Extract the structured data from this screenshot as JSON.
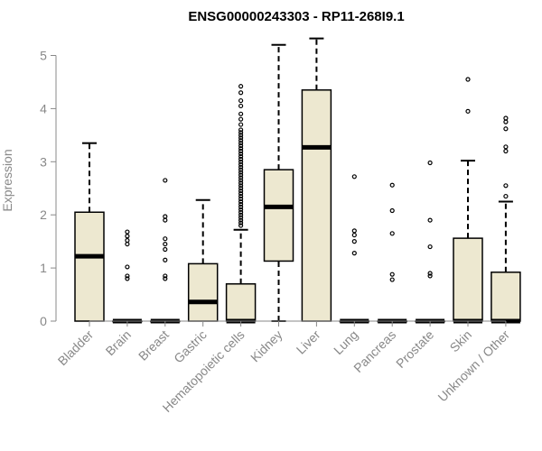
{
  "chart_data": {
    "type": "boxplot",
    "title": "ENSG00000243303 - RP11-268I9.1",
    "xlabel": "",
    "ylabel": "Expression",
    "ylim": [
      0,
      5.35
    ],
    "yticks": [
      0,
      1,
      2,
      3,
      4,
      5
    ],
    "grid": false,
    "legend": "none",
    "colors": {
      "box_fill": "#ede8d0",
      "stroke": "#000000",
      "axis": "#888888"
    },
    "categories": [
      "Bladder",
      "Brain",
      "Breast",
      "Gastric",
      "Hematopoietic cells",
      "Kidney",
      "Liver",
      "Lung",
      "Pancreas",
      "Prostate",
      "Skin",
      "Unknown / Other"
    ],
    "boxes": [
      {
        "category": "Bladder",
        "min": 0,
        "q1": 0,
        "median": 1.22,
        "q3": 2.05,
        "max": 3.35,
        "outliers": []
      },
      {
        "category": "Brain",
        "min": 0,
        "q1": 0,
        "median": 0,
        "q3": 0,
        "max": 0,
        "outliers": [
          0.8,
          0.85,
          1.02,
          1.45,
          1.52,
          1.6,
          1.68
        ]
      },
      {
        "category": "Breast",
        "min": 0,
        "q1": 0,
        "median": 0,
        "q3": 0,
        "max": 0,
        "outliers": [
          0.8,
          0.85,
          1.15,
          1.35,
          1.45,
          1.55,
          1.9,
          1.97,
          2.65
        ]
      },
      {
        "category": "Gastric",
        "min": 0,
        "q1": 0,
        "median": 0.36,
        "q3": 1.08,
        "max": 2.28,
        "outliers": []
      },
      {
        "category": "Hematopoietic cells",
        "min": 0,
        "q1": 0,
        "median": 0,
        "q3": 0.7,
        "max": 1.72,
        "outliers": [
          1.8,
          1.85,
          1.9,
          1.95,
          2.0,
          2.05,
          2.1,
          2.15,
          2.2,
          2.25,
          2.3,
          2.35,
          2.4,
          2.45,
          2.5,
          2.55,
          2.6,
          2.65,
          2.7,
          2.75,
          2.8,
          2.85,
          2.9,
          2.95,
          3.0,
          3.05,
          3.1,
          3.15,
          3.2,
          3.25,
          3.3,
          3.35,
          3.4,
          3.45,
          3.5,
          3.55,
          3.6,
          3.7,
          3.8,
          3.9,
          4.05,
          4.15,
          4.3,
          4.42
        ]
      },
      {
        "category": "Kidney",
        "min": 0,
        "q1": 1.13,
        "median": 2.15,
        "q3": 2.85,
        "max": 5.2,
        "outliers": []
      },
      {
        "category": "Liver",
        "min": 0,
        "q1": 0,
        "median": 3.27,
        "q3": 4.35,
        "max": 5.32,
        "outliers": []
      },
      {
        "category": "Lung",
        "min": 0,
        "q1": 0,
        "median": 0,
        "q3": 0,
        "max": 0,
        "outliers": [
          1.28,
          1.5,
          1.62,
          1.7,
          2.72
        ]
      },
      {
        "category": "Pancreas",
        "min": 0,
        "q1": 0,
        "median": 0,
        "q3": 0,
        "max": 0,
        "outliers": [
          0.78,
          0.88,
          1.65,
          2.08,
          2.56
        ]
      },
      {
        "category": "Prostate",
        "min": 0,
        "q1": 0,
        "median": 0,
        "q3": 0,
        "max": 0,
        "outliers": [
          0.85,
          0.9,
          1.4,
          1.9,
          2.98
        ]
      },
      {
        "category": "Skin",
        "min": 0,
        "q1": 0,
        "median": 0,
        "q3": 1.56,
        "max": 3.02,
        "outliers": [
          3.95,
          4.55
        ]
      },
      {
        "category": "Unknown / Other",
        "min": 0,
        "q1": 0,
        "median": 0,
        "q3": 0.92,
        "max": 2.25,
        "outliers": [
          2.35,
          2.55,
          3.2,
          3.28,
          3.62,
          3.75,
          3.82
        ]
      }
    ]
  }
}
